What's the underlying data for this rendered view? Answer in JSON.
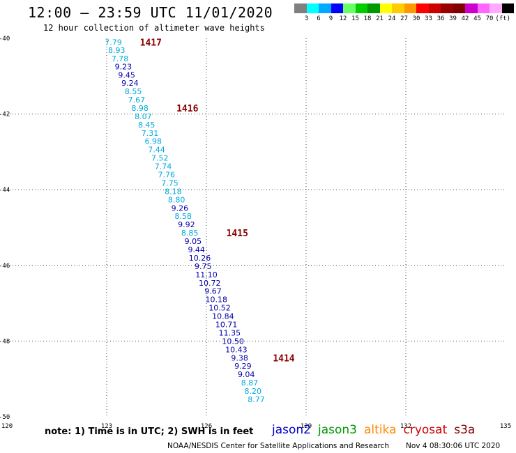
{
  "header": {
    "title": "12:00 – 23:59 UTC 11/01/2020",
    "subtitle": "12 hour collection of altimeter wave heights"
  },
  "colorbar": {
    "colors": [
      "#808080",
      "#00ffff",
      "#00aaff",
      "#0000ff",
      "#66ff66",
      "#00cc00",
      "#009900",
      "#ffff00",
      "#ffcc00",
      "#ff9900",
      "#ff0000",
      "#cc0000",
      "#990000",
      "#800000",
      "#cc00cc",
      "#ff66ff",
      "#ffaaff",
      "#000000"
    ],
    "labels": [
      "3",
      "6",
      "9",
      "12",
      "15",
      "18",
      "21",
      "24",
      "27",
      "30",
      "33",
      "36",
      "39",
      "42",
      "45",
      "70"
    ],
    "unit": "(ft)"
  },
  "chart_data": {
    "type": "scatter",
    "xlim": [
      120,
      135
    ],
    "ylim": [
      -50,
      -40
    ],
    "xticks": [
      "120",
      "123",
      "126",
      "129",
      "132",
      "135"
    ],
    "yticks": [
      "-40",
      "-42",
      "-44",
      "-46",
      "-48",
      "-50"
    ],
    "grid": true,
    "colors": {
      "dark_blue": "#0000aa",
      "light_blue": "#00aadd",
      "time_label": "#880000"
    },
    "points": [
      {
        "x": 123.2,
        "y": -40.1,
        "v": "7.79",
        "c": "light"
      },
      {
        "x": 123.3,
        "y": -40.31,
        "v": "8.93",
        "c": "light"
      },
      {
        "x": 123.4,
        "y": -40.53,
        "v": "7.78",
        "c": "light"
      },
      {
        "x": 123.5,
        "y": -40.75,
        "v": "9.23",
        "c": "dark"
      },
      {
        "x": 123.6,
        "y": -40.97,
        "v": "9.45",
        "c": "dark"
      },
      {
        "x": 123.7,
        "y": -41.18,
        "v": "9.24",
        "c": "dark"
      },
      {
        "x": 123.8,
        "y": -41.4,
        "v": "8.55",
        "c": "light"
      },
      {
        "x": 123.9,
        "y": -41.62,
        "v": "7.67",
        "c": "light"
      },
      {
        "x": 124.0,
        "y": -41.84,
        "v": "8.98",
        "c": "light"
      },
      {
        "x": 124.1,
        "y": -42.06,
        "v": "8.07",
        "c": "light"
      },
      {
        "x": 124.2,
        "y": -42.28,
        "v": "8.45",
        "c": "light"
      },
      {
        "x": 124.3,
        "y": -42.5,
        "v": "7.31",
        "c": "light"
      },
      {
        "x": 124.4,
        "y": -42.72,
        "v": "6.98",
        "c": "light"
      },
      {
        "x": 124.5,
        "y": -42.94,
        "v": "7.44",
        "c": "light"
      },
      {
        "x": 124.6,
        "y": -43.16,
        "v": "7.52",
        "c": "light"
      },
      {
        "x": 124.7,
        "y": -43.38,
        "v": "7.74",
        "c": "light"
      },
      {
        "x": 124.8,
        "y": -43.6,
        "v": "7.76",
        "c": "light"
      },
      {
        "x": 124.9,
        "y": -43.82,
        "v": "7.75",
        "c": "light"
      },
      {
        "x": 125.0,
        "y": -44.04,
        "v": "8.18",
        "c": "light"
      },
      {
        "x": 125.1,
        "y": -44.26,
        "v": "8.80",
        "c": "light"
      },
      {
        "x": 125.2,
        "y": -44.48,
        "v": "9.26",
        "c": "dark"
      },
      {
        "x": 125.3,
        "y": -44.7,
        "v": "8.58",
        "c": "light"
      },
      {
        "x": 125.4,
        "y": -44.92,
        "v": "9.92",
        "c": "dark"
      },
      {
        "x": 125.5,
        "y": -45.14,
        "v": "8.85",
        "c": "light"
      },
      {
        "x": 125.6,
        "y": -45.36,
        "v": "9.05",
        "c": "dark"
      },
      {
        "x": 125.7,
        "y": -45.58,
        "v": "9.44",
        "c": "dark"
      },
      {
        "x": 125.8,
        "y": -45.8,
        "v": "10.26",
        "c": "dark"
      },
      {
        "x": 125.9,
        "y": -46.02,
        "v": "9.75",
        "c": "dark"
      },
      {
        "x": 126.0,
        "y": -46.24,
        "v": "11.10",
        "c": "dark"
      },
      {
        "x": 126.1,
        "y": -46.46,
        "v": "10.72",
        "c": "dark"
      },
      {
        "x": 126.2,
        "y": -46.68,
        "v": "9.67",
        "c": "dark"
      },
      {
        "x": 126.3,
        "y": -46.9,
        "v": "10.18",
        "c": "dark"
      },
      {
        "x": 126.4,
        "y": -47.12,
        "v": "10.52",
        "c": "dark"
      },
      {
        "x": 126.5,
        "y": -47.34,
        "v": "10.84",
        "c": "dark"
      },
      {
        "x": 126.6,
        "y": -47.56,
        "v": "10.71",
        "c": "dark"
      },
      {
        "x": 126.7,
        "y": -47.78,
        "v": "11.35",
        "c": "dark"
      },
      {
        "x": 126.8,
        "y": -48.0,
        "v": "10.50",
        "c": "dark"
      },
      {
        "x": 126.9,
        "y": -48.22,
        "v": "10.43",
        "c": "dark"
      },
      {
        "x": 127.0,
        "y": -48.44,
        "v": "9.38",
        "c": "dark"
      },
      {
        "x": 127.1,
        "y": -48.66,
        "v": "9.29",
        "c": "dark"
      },
      {
        "x": 127.2,
        "y": -48.88,
        "v": "9.04",
        "c": "dark"
      },
      {
        "x": 127.3,
        "y": -49.1,
        "v": "8.87",
        "c": "light"
      },
      {
        "x": 127.4,
        "y": -49.32,
        "v": "8.20",
        "c": "light"
      },
      {
        "x": 127.5,
        "y": -49.54,
        "v": "8.77",
        "c": "light"
      }
    ],
    "time_labels": [
      {
        "x": 124.0,
        "y": -40.1,
        "text": "1417"
      },
      {
        "x": 125.1,
        "y": -41.84,
        "text": "1416"
      },
      {
        "x": 126.6,
        "y": -45.14,
        "text": "1415"
      },
      {
        "x": 128.0,
        "y": -48.44,
        "text": "1414"
      }
    ]
  },
  "footer": {
    "note": "note:  1) Time is in UTC;  2) SWH is in feet",
    "satellites": [
      {
        "name": "jason2",
        "color": "#0000cc"
      },
      {
        "name": "jason3",
        "color": "#009900"
      },
      {
        "name": "altika",
        "color": "#ff8800"
      },
      {
        "name": "cryosat",
        "color": "#cc0000"
      },
      {
        "name": "s3a",
        "color": "#880000"
      }
    ],
    "credit": "NOAA/NESDIS Center for Satellite Applications and Research",
    "timestamp": "Nov  4 08:30:06 UTC 2020"
  }
}
